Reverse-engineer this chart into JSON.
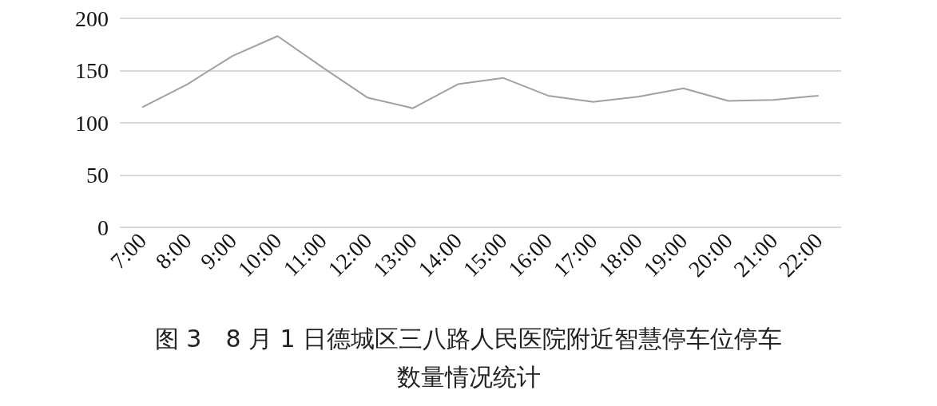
{
  "chart_data": {
    "type": "line",
    "title": "图 3　8 月 1 日德城区三八路人民医院附近智慧停车位停车数量情况统计",
    "categories": [
      "7:00",
      "8:00",
      "9:00",
      "10:00",
      "11:00",
      "12:00",
      "13:00",
      "14:00",
      "15:00",
      "16:00",
      "17:00",
      "18:00",
      "19:00",
      "20:00",
      "21:00",
      "22:00"
    ],
    "series": [
      {
        "color": "#a0a0a0",
        "values": [
          115,
          137,
          164,
          183,
          153,
          124,
          114,
          137,
          143,
          126,
          120,
          125,
          133,
          121,
          122,
          126
        ]
      }
    ],
    "ylim": [
      0,
      200
    ],
    "yticks": [
      0,
      50,
      100,
      150,
      200
    ],
    "grid": "y",
    "marker": "none",
    "line_style": "solid"
  }
}
